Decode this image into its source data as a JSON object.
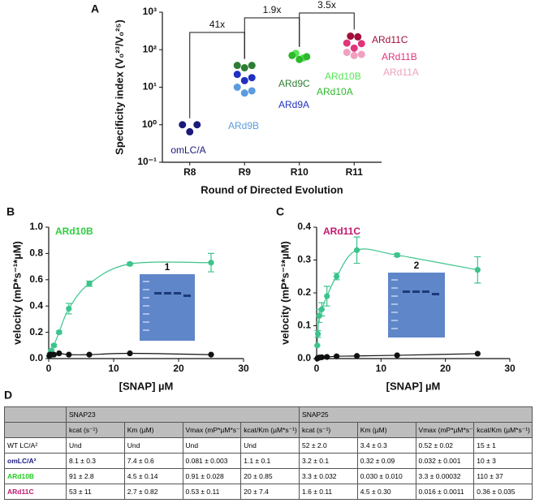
{
  "chart_data": [
    {
      "type": "scatter",
      "panel": "A",
      "categories": [
        "R8",
        "R9",
        "R10",
        "R11"
      ],
      "x_label": "Round of Directed Evolution",
      "y_label": "Specificity index (V₀²³/V₀²⁵)",
      "log_scale": true,
      "ylim": [
        0.1,
        1000
      ],
      "yticks": [
        {
          "value": 0.1,
          "label": "10⁻¹"
        },
        {
          "value": 1,
          "label": "10⁰"
        },
        {
          "value": 10,
          "label": "10¹"
        },
        {
          "value": 100,
          "label": "10²"
        },
        {
          "value": 1000,
          "label": "10³"
        }
      ],
      "annotations": [
        "41x",
        "1.9x",
        "3.5x"
      ],
      "series": [
        {
          "name": "omLC/A",
          "color": "#1a1a7a",
          "x": [
            "R8",
            "R8",
            "R8"
          ],
          "values": [
            1.0,
            0.65,
            1.0
          ]
        },
        {
          "name": "ARd9C",
          "color": "#2e7d32",
          "x": [
            "R9",
            "R9",
            "R9"
          ],
          "values": [
            38,
            33,
            38
          ]
        },
        {
          "name": "ARd9A",
          "color": "#2030c0",
          "x": [
            "R9",
            "R9",
            "R9"
          ],
          "values": [
            22,
            15,
            18
          ]
        },
        {
          "name": "ARd9B",
          "color": "#5b9be0",
          "x": [
            "R9",
            "R9",
            "R9"
          ],
          "values": [
            10,
            7,
            8
          ]
        },
        {
          "name": "ARd10B",
          "color": "#55e655",
          "x": [
            "R10",
            "R10"
          ],
          "values": [
            80,
            60
          ]
        },
        {
          "name": "ARd10A",
          "color": "#2db82d",
          "x": [
            "R10",
            "R10",
            "R10"
          ],
          "values": [
            70,
            55,
            65
          ]
        },
        {
          "name": "ARd11C",
          "color": "#a0103a",
          "x": [
            "R11",
            "R11"
          ],
          "values": [
            230,
            220
          ]
        },
        {
          "name": "ARd11B",
          "color": "#e0357a",
          "x": [
            "R11",
            "R11",
            "R11"
          ],
          "values": [
            150,
            110,
            145
          ]
        },
        {
          "name": "ARd11A",
          "color": "#f0a0c0",
          "x": [
            "R11",
            "R11",
            "R11"
          ],
          "values": [
            85,
            70,
            75
          ]
        }
      ]
    },
    {
      "type": "line",
      "panel": "B",
      "x_label": "[SNAP] µM",
      "y_label": "velocity (mP*s⁻¹*µM)",
      "inset_label": "1",
      "x": [
        0.1,
        0.2,
        0.4,
        0.8,
        1.6,
        3.1,
        6.25,
        12.5,
        25
      ],
      "xlim": [
        0,
        30
      ],
      "xticks": [
        0,
        10,
        20,
        30
      ],
      "ylim": [
        0,
        1
      ],
      "yticks": [
        {
          "value": 0,
          "label": "0.0"
        },
        0.2,
        0.4,
        0.6,
        0.8,
        {
          "value": 1,
          "label": "1.0"
        }
      ],
      "series": [
        {
          "name": "ARd10B",
          "name_color": "#2ecc40",
          "color": "#3cc48c",
          "values": [
            0.02,
            0.04,
            0.06,
            0.1,
            0.2,
            0.38,
            0.57,
            0.72,
            0.73
          ],
          "errors": [
            0,
            0,
            0.01,
            0.01,
            0.01,
            0.04,
            0.02,
            0.01,
            0.07
          ]
        },
        {
          "color": "#111111",
          "values": [
            0.02,
            0.03,
            0.03,
            0.03,
            0.04,
            0.03,
            0.03,
            0.04,
            0.03
          ]
        }
      ]
    },
    {
      "type": "line",
      "panel": "C",
      "x_label": "[SNAP] µM",
      "y_label": "velocity (mP*s⁻¹*µM)",
      "inset_label": "2",
      "x": [
        0.1,
        0.2,
        0.4,
        0.8,
        1.6,
        3.1,
        6.25,
        12.5,
        25
      ],
      "xlim": [
        0,
        30
      ],
      "xticks": [
        0,
        10,
        20,
        30
      ],
      "ylim": [
        0,
        0.4
      ],
      "yticks": [
        {
          "value": 0,
          "label": "0.0"
        },
        0.1,
        0.2,
        0.3,
        0.4
      ],
      "series": [
        {
          "name": "ARd11C",
          "name_color": "#c0186e",
          "color": "#3cc48c",
          "values": [
            0.04,
            0.075,
            0.13,
            0.15,
            0.19,
            0.25,
            0.33,
            0.315,
            0.27
          ],
          "errors": [
            0,
            0.01,
            0.02,
            0.02,
            0.03,
            0.01,
            0.04,
            0.005,
            0.04
          ]
        },
        {
          "color": "#111111",
          "values": [
            0,
            0.002,
            0.003,
            0.004,
            0.005,
            0.007,
            0.008,
            0.01,
            0.015
          ]
        }
      ]
    }
  ],
  "table": {
    "panel": "D",
    "groups": [
      "SNAP23",
      "SNAP25"
    ],
    "columns": [
      "kcat (s⁻¹)",
      "Km (µM)",
      "Vmax (mP*µM*s⁻¹)",
      "kcat/Km (µM*s⁻¹)",
      "kcat (s⁻¹)",
      "Km (µM)",
      "Vmax (mP*µM*s⁻¹)",
      "kcat/Km (µM*s⁻¹)"
    ],
    "rows": [
      [
        "WT LC/A²",
        "Und",
        "Und",
        "Und",
        "Und",
        "52 ± 2.0",
        "3.4 ± 0.3",
        "0.52 ± 0.02",
        "15 ± 1"
      ],
      [
        "omLC/A²",
        "8.1 ± 0.3",
        "7.4 ± 0.6",
        "0.081 ± 0.003",
        "1.1 ± 0.1",
        "3.2 ± 0.1",
        "0.32 ± 0.09",
        "0.032 ± 0.001",
        "10 ± 3"
      ],
      [
        "ARd10B",
        "91 ± 2.8",
        "4.5 ± 0.14",
        "0.91 ± 0.028",
        "20 ± 0.85",
        "3.3 ± 0.032",
        "0.030 ± 0.010",
        "3.3 ± 0.00032",
        "110 ± 37"
      ],
      [
        "ARd11C",
        "53 ± 11",
        "2.7 ± 0.82",
        "0.53 ± 0.11",
        "20 ± 7.4",
        "1.6 ± 0.11",
        "4.5 ± 0.30",
        "0.016 ± 0.0011",
        "0.36 ± 0.035"
      ]
    ]
  }
}
